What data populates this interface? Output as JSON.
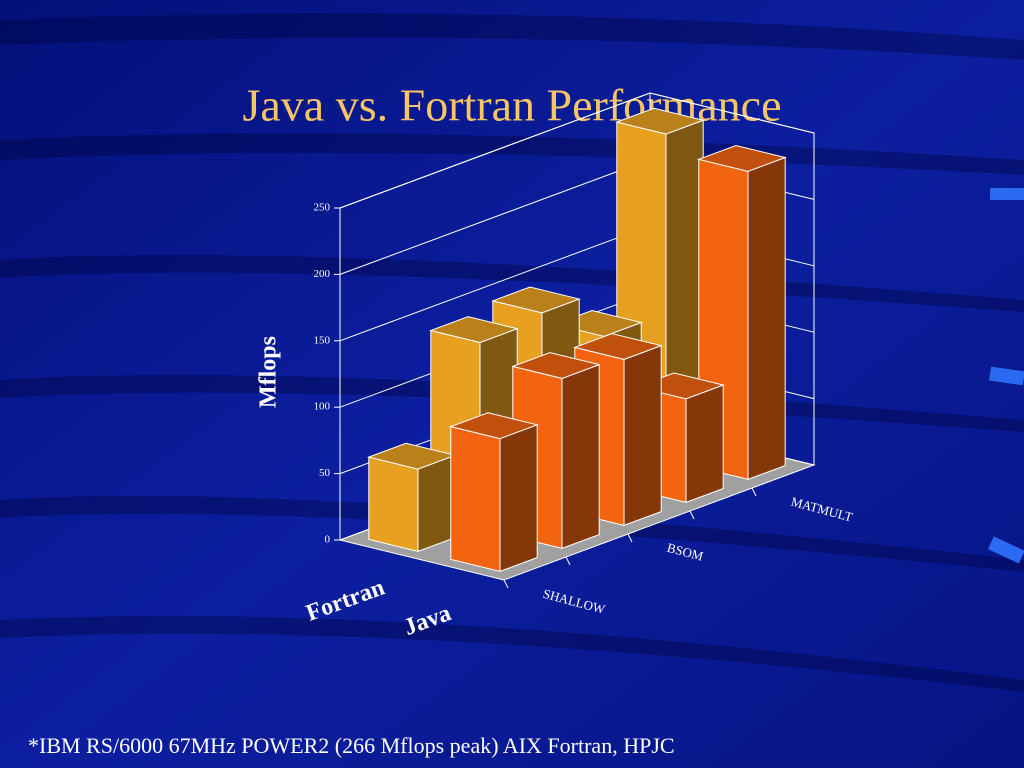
{
  "chart_data": {
    "type": "bar3d",
    "title": "Java vs. Fortran Performance",
    "ylabel": "Mflops",
    "footnote": "*IBM RS/6000 67MHz POWER2 (266 Mflops peak) AIX Fortran, HPJC",
    "categories": [
      "SHALLOW",
      null,
      "BSOM",
      null,
      "MATMULT"
    ],
    "series": [
      {
        "name": "Fortran",
        "color": "#e8a020",
        "values": [
          62,
          140,
          145,
          110,
          245
        ]
      },
      {
        "name": "Java",
        "color": "#f26410",
        "values": [
          100,
          128,
          125,
          78,
          232
        ]
      }
    ],
    "ylim": [
      0,
      250
    ],
    "yticks": [
      0,
      50,
      100,
      150,
      200,
      250
    ],
    "grid": true
  }
}
